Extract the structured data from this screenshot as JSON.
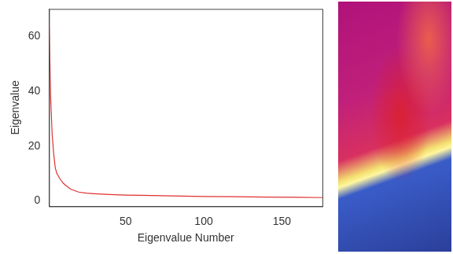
{
  "chart_data": {
    "type": "line",
    "x_label": "Eigenvalue Number",
    "y_label": "Eigenvalue",
    "x": [
      1,
      2,
      3,
      4,
      5,
      6,
      7,
      8,
      10,
      12,
      15,
      20,
      25,
      30,
      40,
      50,
      60,
      80,
      100,
      120,
      140,
      160,
      176
    ],
    "values": [
      65,
      38,
      24,
      17,
      12,
      10,
      9,
      8,
      6.5,
      5.5,
      4.2,
      3.2,
      2.8,
      2.6,
      2.3,
      2.1,
      2.0,
      1.8,
      1.6,
      1.5,
      1.4,
      1.3,
      1.2
    ],
    "color": "#e03030",
    "xlim": [
      1,
      176
    ],
    "xticks": [
      50,
      100,
      150
    ],
    "ylim": [
      -2,
      70
    ],
    "yticks": [
      0,
      20,
      40,
      60
    ],
    "grid": false
  }
}
